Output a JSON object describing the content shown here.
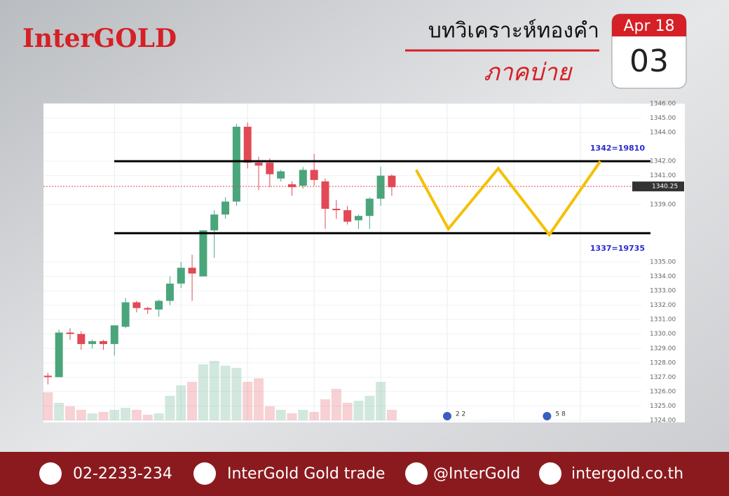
{
  "header": {
    "brand": "InterGOLD",
    "title": "บทวิเคราะห์ทองคำ",
    "subtitle": "ภาคบ่าย",
    "calendar_month": "Apr 18",
    "calendar_day": "03"
  },
  "chart_data": {
    "type": "candlestick",
    "open": [
      1327.1,
      1327.0,
      1330.1,
      1330.0,
      1329.3,
      1329.5,
      1329.3,
      1330.5,
      1332.2,
      1331.8,
      1331.7,
      1332.3,
      1333.5,
      1334.6,
      1334.0,
      1337.2,
      1338.3,
      1339.2,
      1344.4,
      1341.9,
      1341.9,
      1340.8,
      1340.4,
      1340.3,
      1341.4,
      1340.6,
      1338.7,
      1338.6,
      1337.9,
      1338.2,
      1339.4,
      1341.0
    ],
    "high": [
      1327.3,
      1330.3,
      1330.4,
      1330.2,
      1329.6,
      1329.6,
      1330.6,
      1332.5,
      1332.3,
      1331.9,
      1332.4,
      1334.0,
      1335.0,
      1335.5,
      1337.2,
      1338.6,
      1339.5,
      1344.6,
      1344.7,
      1342.3,
      1342.2,
      1341.4,
      1340.6,
      1341.6,
      1342.5,
      1340.8,
      1339.3,
      1338.9,
      1338.3,
      1339.5,
      1341.6,
      1341.1
    ],
    "low": [
      1326.5,
      1327.0,
      1329.6,
      1328.9,
      1329.0,
      1328.9,
      1328.5,
      1330.4,
      1331.5,
      1331.4,
      1331.2,
      1332.0,
      1333.2,
      1332.3,
      1334.0,
      1335.3,
      1338.0,
      1338.9,
      1341.5,
      1340.0,
      1340.2,
      1340.6,
      1339.6,
      1340.1,
      1340.3,
      1337.3,
      1338.0,
      1337.6,
      1337.3,
      1337.3,
      1338.9,
      1339.6
    ],
    "close": [
      1327.0,
      1330.1,
      1330.0,
      1329.3,
      1329.5,
      1329.3,
      1330.6,
      1332.2,
      1331.8,
      1331.7,
      1332.3,
      1333.5,
      1334.6,
      1334.2,
      1337.2,
      1338.3,
      1339.2,
      1344.4,
      1341.9,
      1341.7,
      1341.1,
      1341.3,
      1340.2,
      1341.4,
      1340.7,
      1338.7,
      1338.6,
      1337.8,
      1338.2,
      1339.4,
      1341.0,
      1340.2
    ],
    "volume": [
      40,
      25,
      20,
      15,
      10,
      12,
      15,
      18,
      15,
      8,
      10,
      35,
      50,
      55,
      80,
      85,
      78,
      75,
      55,
      60,
      20,
      15,
      10,
      15,
      12,
      30,
      45,
      25,
      28,
      35,
      55,
      15
    ],
    "vlim": [
      0,
      100
    ],
    "up_color": "#4aa57b",
    "down_color": "#e04955",
    "xlim": [
      -0.4,
      53.5
    ],
    "xgrid": [
      6,
      12,
      18,
      24,
      30,
      36,
      42,
      48
    ],
    "ylim": [
      1324,
      1346
    ],
    "yticks": [
      {
        "value": 1324,
        "label": "1324.00"
      },
      {
        "value": 1325,
        "label": "1325.00"
      },
      {
        "value": 1326,
        "label": "1326.00"
      },
      {
        "value": 1327,
        "label": "1327.00"
      },
      {
        "value": 1328,
        "label": "1328.00"
      },
      {
        "value": 1329,
        "label": "1329.00"
      },
      {
        "value": 1330,
        "label": "1330.00"
      },
      {
        "value": 1331,
        "label": "1331.00"
      },
      {
        "value": 1332,
        "label": "1332.00"
      },
      {
        "value": 1333,
        "label": "1333.00"
      },
      {
        "value": 1334,
        "label": "1334.00"
      },
      {
        "value": 1335,
        "label": "1335.00"
      },
      {
        "value": 1339,
        "label": "1339.00"
      },
      {
        "value": 1341,
        "label": "1341.00"
      },
      {
        "value": 1342,
        "label": "1342.00"
      },
      {
        "value": 1344,
        "label": "1344.00"
      },
      {
        "value": 1345,
        "label": "1345.00"
      },
      {
        "value": 1346,
        "label": "1346.00"
      }
    ],
    "last_price": {
      "value": 1340.25,
      "label": "1340.25"
    },
    "levels": [
      {
        "value": 1342,
        "label": "1342=19810"
      },
      {
        "value": 1337,
        "label": "1337=19735"
      }
    ],
    "projection": {
      "x": [
        33.2,
        36.1,
        40.6,
        45.2,
        49.8
      ],
      "values": [
        1341.4,
        1337.3,
        1341.5,
        1336.9,
        1342.0
      ],
      "color": "#f5c000"
    },
    "events": [
      {
        "x": 36.5,
        "label": "2 2"
      },
      {
        "x": 45.5,
        "label": "5 8"
      }
    ]
  },
  "footer": {
    "phone": "02-2233-234",
    "facebook": "InterGold Gold trade",
    "line": "@InterGold",
    "website": "intergold.co.th"
  }
}
